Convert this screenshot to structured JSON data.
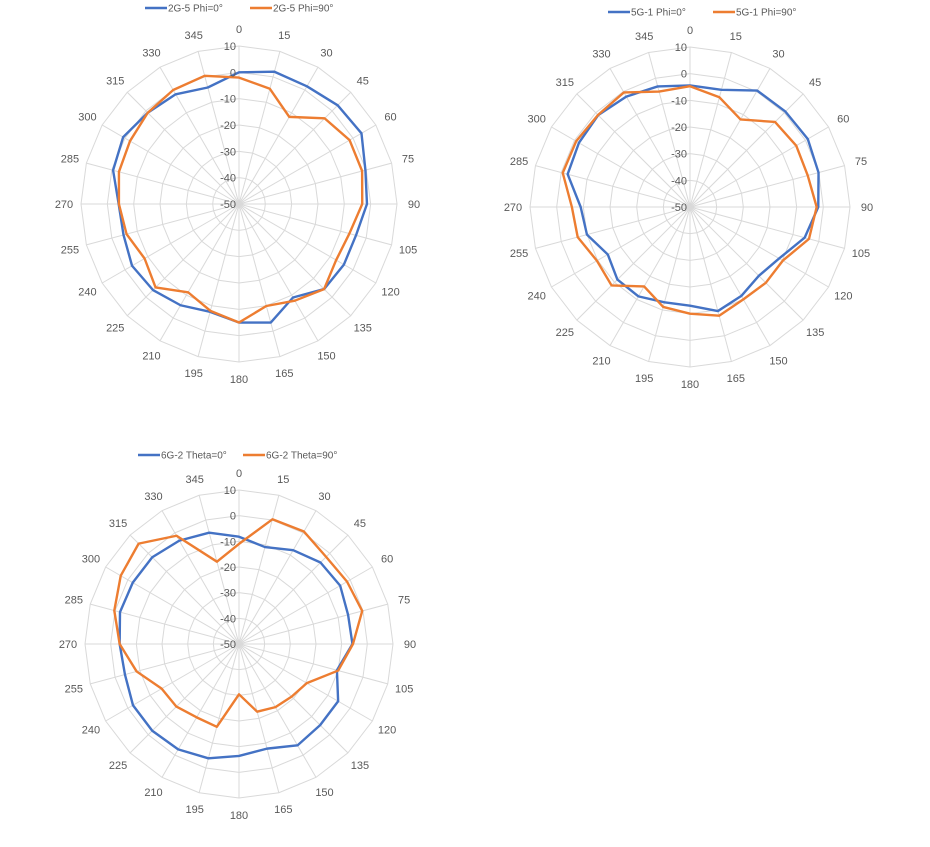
{
  "chart_data": [
    {
      "type": "radar",
      "theta": [
        0,
        15,
        30,
        45,
        60,
        75,
        90,
        105,
        120,
        135,
        150,
        165,
        180,
        195,
        210,
        225,
        240,
        255,
        270,
        285,
        300,
        315,
        330,
        345
      ],
      "theta_labels": [
        "0",
        "15",
        "30",
        "45",
        "60",
        "75",
        "90",
        "105",
        "120",
        "135",
        "150",
        "165",
        "180",
        "195",
        "210",
        "225",
        "240",
        "255",
        "270",
        "285",
        "300",
        "315",
        "330",
        "345"
      ],
      "r_ticks": [
        "-50",
        "-40",
        "-30",
        "-20",
        "-10",
        "0",
        "10"
      ],
      "rlim": [
        -50,
        10
      ],
      "legend_position": "top",
      "series": [
        {
          "name": "2G-5 Phi=0°",
          "color": "#4472c4",
          "values": [
            0,
            2,
            1.6,
            3,
            3.7,
            -0.3,
            -1.4,
            -4,
            -4,
            -4.3,
            -9,
            -3.4,
            -5,
            -7.6,
            -5.6,
            -3.8,
            -3.1,
            -4.6,
            -4.3,
            -0.5,
            0.8,
            -1,
            -1.9,
            -4.2
          ]
        },
        {
          "name": "2G-5 Phi=90°",
          "color": "#ed7d31",
          "values": [
            -2,
            -4.7,
            -11.8,
            -4,
            -1.5,
            -1.6,
            -3.2,
            -6.6,
            -7.4,
            -4.3,
            -7.6,
            -9.9,
            -5,
            -8,
            -11.3,
            -5.2,
            -8.6,
            -5.8,
            -4.4,
            -2.8,
            -2.2,
            -1,
            0,
            0.4
          ]
        }
      ]
    },
    {
      "type": "radar",
      "theta": [
        0,
        15,
        30,
        45,
        60,
        75,
        90,
        105,
        120,
        135,
        150,
        165,
        180,
        195,
        210,
        225,
        240,
        255,
        270,
        285,
        300,
        315,
        330,
        345
      ],
      "theta_labels": [
        "0",
        "15",
        "30",
        "45",
        "60",
        "75",
        "90",
        "105",
        "120",
        "135",
        "150",
        "165",
        "180",
        "195",
        "210",
        "225",
        "240",
        "255",
        "270",
        "285",
        "300",
        "315",
        "330",
        "345"
      ],
      "r_ticks": [
        "-50",
        "-40",
        "-30",
        "-20",
        "-10",
        "0",
        "10"
      ],
      "rlim": [
        -50,
        10
      ],
      "legend_position": "top",
      "series": [
        {
          "name": "5G-1 Phi=0°",
          "color": "#4472c4",
          "values": [
            -4.4,
            -4.5,
            0.4,
            0.6,
            1,
            -0.1,
            -1.9,
            -5.5,
            -11.4,
            -13.5,
            -11.5,
            -9.6,
            -13,
            -13,
            -11.3,
            -11.5,
            -14.4,
            -10,
            -9,
            -2.5,
            -1.9,
            -1.3,
            -2.2,
            -3.2
          ]
        },
        {
          "name": "5G-1 Phi=90°",
          "color": "#ed7d31",
          "values": [
            -4.7,
            -7.4,
            -12.1,
            -4.9,
            -4,
            -4.3,
            -2.5,
            -3.8,
            -9.8,
            -9.8,
            -10,
            -7.8,
            -10,
            -11.2,
            -15.6,
            -8.4,
            -9.7,
            -6.4,
            -5.7,
            -0.6,
            -0.7,
            -1.2,
            -0.4,
            -5.2
          ]
        }
      ]
    },
    {
      "type": "radar",
      "theta": [
        0,
        15,
        30,
        45,
        60,
        75,
        90,
        105,
        120,
        135,
        150,
        165,
        180,
        195,
        210,
        225,
        240,
        255,
        270,
        285,
        300,
        315,
        330,
        345
      ],
      "theta_labels": [
        "0",
        "15",
        "30",
        "45",
        "60",
        "75",
        "90",
        "105",
        "120",
        "135",
        "150",
        "165",
        "180",
        "195",
        "210",
        "225",
        "240",
        "255",
        "270",
        "285",
        "300",
        "315",
        "330",
        "345"
      ],
      "r_ticks": [
        "-50",
        "-40",
        "-30",
        "-20",
        "-10",
        "0",
        "10"
      ],
      "rlim": [
        -50,
        10
      ],
      "legend_position": "top",
      "series": [
        {
          "name": "6G-2 Theta=0°",
          "color": "#4472c4",
          "values": [
            -8.2,
            -10.9,
            -7.8,
            -5.1,
            -4.5,
            -6,
            -5.8,
            -10.5,
            -5.4,
            -5.3,
            -4.4,
            -7.8,
            -6.4,
            -3.9,
            -2.6,
            -2.2,
            -2.3,
            -4,
            -3.5,
            -2,
            -2.2,
            -2.2,
            -3.5,
            -5.1
          ]
        },
        {
          "name": "6G-2 Theta=90°",
          "color": "#ed7d31",
          "values": [
            -11,
            0.3,
            0.6,
            -2,
            -1.4,
            -0.3,
            -5.6,
            -10,
            -19.5,
            -21,
            -21.6,
            -22.7,
            -30.4,
            -16.6,
            -17,
            -15.5,
            -15.2,
            -8.7,
            -3.5,
            0.3,
            3.2,
            5.3,
            -1.3,
            -16.8
          ]
        }
      ]
    }
  ]
}
